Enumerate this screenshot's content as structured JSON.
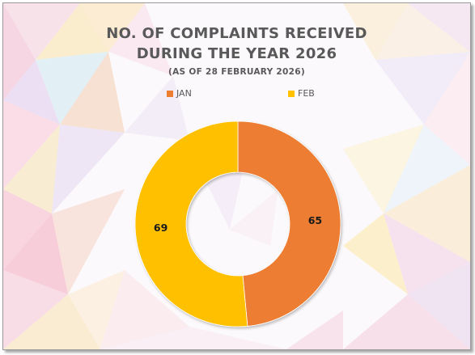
{
  "chart_data": {
    "type": "pie",
    "style": "doughnut",
    "title_lines": [
      "NO. OF COMPLAINTS RECEIVED",
      "DURING THE YEAR 2026"
    ],
    "subtitle": "(AS OF 28 FEBRUARY 2026)",
    "legend_position": "top",
    "categories": [
      "JAN",
      "FEB"
    ],
    "values": [
      65,
      69
    ],
    "colors": [
      "#ED7D31",
      "#FFC000"
    ]
  }
}
